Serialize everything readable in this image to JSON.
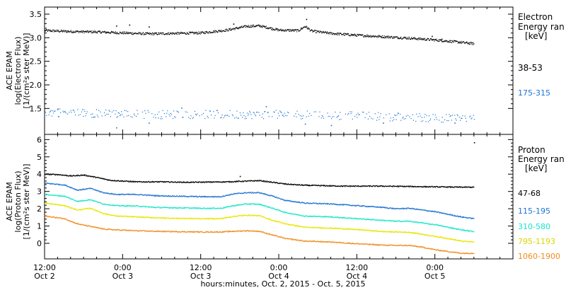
{
  "figure": {
    "x_title": "hours:minutes, Oct.  2, 2015 - Oct.  5, 2015",
    "x_ticks": [
      {
        "time": "12:00",
        "day": "Oct 2",
        "hours": 0
      },
      {
        "time": "0:00",
        "day": "Oct 3",
        "hours": 12
      },
      {
        "time": "12:00",
        "day": "Oct 3",
        "hours": 24
      },
      {
        "time": "0:00",
        "day": "Oct 4",
        "hours": 36
      },
      {
        "time": "12:00",
        "day": "Oct 4",
        "hours": 48
      },
      {
        "time": "0:00",
        "day": "Oct 5",
        "hours": 60
      }
    ],
    "x_range_hours": [
      0,
      72
    ]
  },
  "chart_data": [
    {
      "type": "scatter",
      "panel": "electron",
      "ylabel_lines": [
        "ACE EPAM",
        "log(Electron Flux)",
        "[1/(cm²s ster MeV)]"
      ],
      "ylim": [
        0.95,
        3.65
      ],
      "y_ticks": [
        "1.5",
        "2.0",
        "2.5",
        "3.0",
        "3.5"
      ],
      "y_tick_values": [
        1.5,
        2.0,
        2.5,
        3.0,
        3.5
      ],
      "legend_title": [
        "Electron",
        "Energy ran",
        "[keV]"
      ],
      "series": [
        {
          "name": "38-53",
          "color": "#000000",
          "points": [
            [
              0,
              3.16
            ],
            [
              4,
              3.14
            ],
            [
              8,
              3.13
            ],
            [
              12,
              3.11
            ],
            [
              16,
              3.09
            ],
            [
              20,
              3.1
            ],
            [
              24,
              3.11
            ],
            [
              28,
              3.17
            ],
            [
              31,
              3.25
            ],
            [
              33,
              3.26
            ],
            [
              36,
              3.17
            ],
            [
              39,
              3.16
            ],
            [
              40,
              3.25
            ],
            [
              41,
              3.15
            ],
            [
              44,
              3.1
            ],
            [
              48,
              3.06
            ],
            [
              52,
              3.03
            ],
            [
              56,
              3.0
            ],
            [
              60,
              2.96
            ],
            [
              64,
              2.91
            ],
            [
              66,
              2.88
            ]
          ],
          "outliers": [
            [
              11,
              3.26
            ],
            [
              13,
              3.28
            ],
            [
              16,
              3.24
            ],
            [
              29,
              3.3
            ],
            [
              40.2,
              3.4
            ],
            [
              59.5,
              3.04
            ],
            [
              61,
              2.98
            ]
          ]
        },
        {
          "name": "175-315",
          "color": "#1e73d2",
          "points": [
            [
              0,
              1.43
            ],
            [
              6,
              1.41
            ],
            [
              12,
              1.39
            ],
            [
              18,
              1.38
            ],
            [
              24,
              1.38
            ],
            [
              30,
              1.38
            ],
            [
              36,
              1.38
            ],
            [
              42,
              1.37
            ],
            [
              48,
              1.35
            ],
            [
              54,
              1.33
            ],
            [
              60,
              1.31
            ],
            [
              66,
              1.29
            ]
          ],
          "outliers": [
            [
              2,
              1.5
            ],
            [
              11,
              1.1
            ],
            [
              16,
              1.2
            ],
            [
              21,
              1.52
            ],
            [
              34,
              1.55
            ],
            [
              40,
              1.18
            ],
            [
              44,
              1.15
            ],
            [
              52,
              1.2
            ],
            [
              63,
              1.2
            ]
          ]
        }
      ]
    },
    {
      "type": "scatter",
      "panel": "proton",
      "ylabel_lines": [
        "ACE EPAM",
        "log(Proton Flux)",
        "[1/(cm²s ster MeV)]"
      ],
      "ylim": [
        -0.9,
        6.3
      ],
      "y_ticks": [
        "0",
        "1",
        "2",
        "3",
        "4",
        "5",
        "6"
      ],
      "y_tick_values": [
        0,
        1,
        2,
        3,
        4,
        5,
        6
      ],
      "legend_title": [
        "Proton",
        "Energy ran",
        "[keV]"
      ],
      "series": [
        {
          "name": "47-68",
          "color": "#000000",
          "points": [
            [
              0,
              4.02
            ],
            [
              2,
              4.0
            ],
            [
              4,
              3.92
            ],
            [
              6,
              3.97
            ],
            [
              8,
              3.83
            ],
            [
              10,
              3.67
            ],
            [
              14,
              3.58
            ],
            [
              18,
              3.58
            ],
            [
              22,
              3.55
            ],
            [
              28,
              3.58
            ],
            [
              31,
              3.62
            ],
            [
              33,
              3.65
            ],
            [
              35,
              3.55
            ],
            [
              37,
              3.45
            ],
            [
              40,
              3.38
            ],
            [
              46,
              3.33
            ],
            [
              52,
              3.33
            ],
            [
              58,
              3.3
            ],
            [
              64,
              3.27
            ],
            [
              66,
              3.27
            ]
          ],
          "outliers": [
            [
              30,
              3.9
            ],
            [
              66,
              5.85
            ]
          ]
        },
        {
          "name": "115-195",
          "color": "#1e73d2",
          "points": [
            [
              0,
              3.5
            ],
            [
              3,
              3.4
            ],
            [
              5,
              3.1
            ],
            [
              7,
              3.2
            ],
            [
              9,
              2.95
            ],
            [
              11,
              2.85
            ],
            [
              14,
              2.85
            ],
            [
              17,
              2.78
            ],
            [
              20,
              2.75
            ],
            [
              24,
              2.72
            ],
            [
              27,
              2.72
            ],
            [
              29,
              2.88
            ],
            [
              31,
              2.95
            ],
            [
              33,
              2.95
            ],
            [
              35,
              2.75
            ],
            [
              37,
              2.5
            ],
            [
              40,
              2.35
            ],
            [
              44,
              2.3
            ],
            [
              48,
              2.2
            ],
            [
              52,
              2.1
            ],
            [
              54,
              2.02
            ],
            [
              56,
              2.05
            ],
            [
              58,
              1.95
            ],
            [
              60,
              1.85
            ],
            [
              62,
              1.7
            ],
            [
              64,
              1.55
            ],
            [
              66,
              1.45
            ]
          ],
          "outliers": []
        },
        {
          "name": "310-580",
          "color": "#19e6c8",
          "points": [
            [
              0,
              2.85
            ],
            [
              3,
              2.75
            ],
            [
              5,
              2.45
            ],
            [
              7,
              2.55
            ],
            [
              9,
              2.3
            ],
            [
              11,
              2.2
            ],
            [
              14,
              2.18
            ],
            [
              17,
              2.1
            ],
            [
              20,
              2.08
            ],
            [
              24,
              2.05
            ],
            [
              27,
              2.05
            ],
            [
              29,
              2.2
            ],
            [
              31,
              2.3
            ],
            [
              33,
              2.28
            ],
            [
              35,
              2.05
            ],
            [
              37,
              1.8
            ],
            [
              40,
              1.6
            ],
            [
              44,
              1.55
            ],
            [
              48,
              1.45
            ],
            [
              52,
              1.35
            ],
            [
              54,
              1.3
            ],
            [
              56,
              1.3
            ],
            [
              58,
              1.2
            ],
            [
              60,
              1.1
            ],
            [
              62,
              0.95
            ],
            [
              64,
              0.8
            ],
            [
              66,
              0.7
            ]
          ],
          "outliers": []
        },
        {
          "name": "795-1193",
          "color": "#e6e600",
          "points": [
            [
              0,
              2.35
            ],
            [
              3,
              2.2
            ],
            [
              5,
              1.95
            ],
            [
              7,
              2.05
            ],
            [
              9,
              1.75
            ],
            [
              11,
              1.6
            ],
            [
              14,
              1.55
            ],
            [
              17,
              1.5
            ],
            [
              20,
              1.47
            ],
            [
              24,
              1.45
            ],
            [
              27,
              1.45
            ],
            [
              29,
              1.58
            ],
            [
              31,
              1.65
            ],
            [
              33,
              1.62
            ],
            [
              35,
              1.35
            ],
            [
              37,
              1.15
            ],
            [
              40,
              0.95
            ],
            [
              44,
              0.9
            ],
            [
              48,
              0.82
            ],
            [
              52,
              0.7
            ],
            [
              54,
              0.68
            ],
            [
              56,
              0.66
            ],
            [
              58,
              0.55
            ],
            [
              60,
              0.42
            ],
            [
              62,
              0.3
            ],
            [
              64,
              0.15
            ],
            [
              66,
              0.1
            ]
          ],
          "outliers": []
        },
        {
          "name": "1060-1900",
          "color": "#f08c1e",
          "points": [
            [
              0,
              1.6
            ],
            [
              3,
              1.45
            ],
            [
              5,
              1.15
            ],
            [
              7,
              1.0
            ],
            [
              9,
              0.85
            ],
            [
              11,
              0.8
            ],
            [
              14,
              0.75
            ],
            [
              17,
              0.72
            ],
            [
              20,
              0.7
            ],
            [
              24,
              0.68
            ],
            [
              27,
              0.68
            ],
            [
              29,
              0.72
            ],
            [
              31,
              0.75
            ],
            [
              33,
              0.72
            ],
            [
              35,
              0.5
            ],
            [
              37,
              0.3
            ],
            [
              40,
              0.15
            ],
            [
              44,
              0.1
            ],
            [
              48,
              0.0
            ],
            [
              52,
              -0.08
            ],
            [
              54,
              -0.1
            ],
            [
              56,
              -0.1
            ],
            [
              58,
              -0.2
            ],
            [
              60,
              -0.35
            ],
            [
              62,
              -0.45
            ],
            [
              64,
              -0.55
            ],
            [
              66,
              -0.55
            ]
          ],
          "outliers": []
        }
      ]
    }
  ]
}
